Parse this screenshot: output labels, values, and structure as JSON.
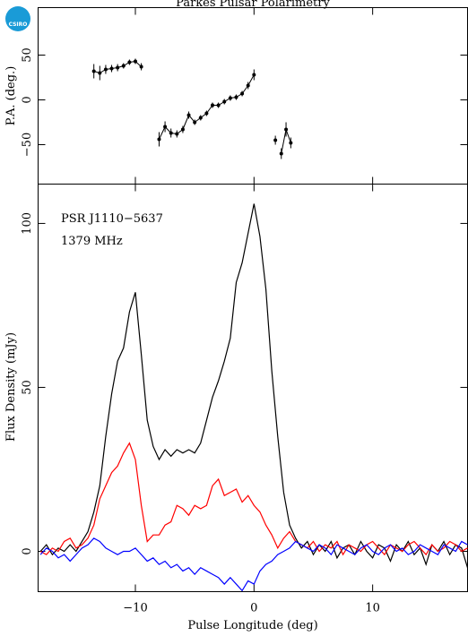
{
  "logo": "CSIRO",
  "chart_data": [
    {
      "type": "errorbar",
      "title": "Parkes Pulsar Polarimetry",
      "ylabel": "P.A. (deg.)",
      "x": [
        -13.5,
        -13,
        -12.5,
        -12,
        -11.5,
        -11,
        -10.5,
        -10,
        -9.5,
        -9,
        -8,
        -7.5,
        -7,
        -6.5,
        -6,
        -5.5,
        -5,
        -4.5,
        -4,
        -3.5,
        -3,
        -2.5,
        -2,
        -1.5,
        -1,
        -0.5,
        0,
        1,
        1.8,
        2,
        2.3,
        2.7,
        3.1
      ],
      "values": [
        32,
        30,
        34,
        35,
        36,
        38,
        42,
        43,
        37,
        null,
        -44,
        -30,
        -37,
        -38,
        -33,
        -17,
        -25,
        -20,
        -15,
        -6,
        -6,
        -2,
        2,
        3,
        7,
        16,
        28,
        null,
        -45,
        null,
        -60,
        -33,
        -48
      ],
      "errors": [
        8,
        8,
        5,
        4,
        4,
        3,
        3,
        3,
        4,
        null,
        8,
        6,
        5,
        4,
        4,
        4,
        3,
        3,
        3,
        3,
        3,
        3,
        3,
        3,
        3,
        4,
        6,
        null,
        5,
        null,
        6,
        8,
        6
      ],
      "color": "#000000",
      "xlim": [
        -18.2,
        18
      ],
      "xticks": [
        -10,
        0,
        10
      ],
      "ylim": [
        -94,
        103
      ],
      "yticks": [
        {
          "value": -50,
          "label": "−50"
        },
        0,
        50
      ]
    },
    {
      "type": "line",
      "xlabel": "Pulse Longitude (deg)",
      "ylabel": "Flux Density (mJy)",
      "annotations": [
        "PSR J1110−5637",
        "1379 MHz"
      ],
      "x": [
        -18,
        -17.5,
        -17,
        -16.5,
        -16,
        -15.5,
        -15,
        -14.5,
        -14,
        -13.5,
        -13,
        -12.5,
        -12,
        -11.5,
        -11,
        -10.5,
        -10,
        -9.5,
        -9,
        -8.5,
        -8,
        -7.5,
        -7,
        -6.5,
        -6,
        -5.5,
        -5,
        -4.5,
        -4,
        -3.5,
        -3,
        -2.5,
        -2,
        -1.5,
        -1,
        -0.5,
        0,
        0.5,
        1,
        1.5,
        2,
        2.5,
        3,
        3.5,
        4,
        4.5,
        5,
        5.5,
        6,
        6.5,
        7,
        7.5,
        8,
        8.5,
        9,
        9.5,
        10,
        10.5,
        11,
        11.5,
        12,
        12.5,
        13,
        13.5,
        14,
        14.5,
        15,
        15.5,
        16,
        16.5,
        17,
        17.5,
        18
      ],
      "series": [
        {
          "color": "#000000",
          "values": [
            0,
            2,
            -1,
            1,
            0,
            2,
            0,
            3,
            6,
            12,
            20,
            35,
            48,
            58,
            62,
            73,
            79,
            60,
            40,
            32,
            28,
            31,
            29,
            31,
            30,
            31,
            30,
            33,
            40,
            47,
            52,
            58,
            65,
            82,
            88,
            97,
            106,
            96,
            80,
            55,
            35,
            18,
            8,
            4,
            1,
            3,
            -1,
            2,
            0,
            3,
            -2,
            1,
            2,
            -1,
            3,
            0,
            -2,
            2,
            1,
            -3,
            2,
            0,
            3,
            -1,
            1,
            -4,
            2,
            0,
            3,
            -1,
            2,
            1,
            -5
          ]
        },
        {
          "color": "#ff0000",
          "values": [
            0,
            -1,
            1,
            0,
            3,
            4,
            1,
            2,
            4,
            8,
            16,
            20,
            24,
            26,
            30,
            33,
            28,
            14,
            3,
            5,
            5,
            8,
            9,
            14,
            13,
            11,
            14,
            13,
            14,
            20,
            22,
            17,
            18,
            19,
            15,
            17,
            14,
            12,
            8,
            5,
            1,
            4,
            6,
            3,
            2,
            1,
            3,
            0,
            2,
            1,
            3,
            -1,
            2,
            1,
            0,
            2,
            3,
            1,
            -1,
            2,
            1,
            0,
            2,
            3,
            1,
            -1,
            2,
            0,
            1,
            3,
            2,
            0,
            1
          ]
        },
        {
          "color": "#0000ff",
          "values": [
            -1,
            1,
            0,
            -2,
            -1,
            -3,
            -1,
            1,
            2,
            4,
            3,
            1,
            0,
            -1,
            0,
            0,
            1,
            -1,
            -3,
            -2,
            -4,
            -3,
            -5,
            -4,
            -6,
            -5,
            -7,
            -5,
            -6,
            -7,
            -8,
            -10,
            -8,
            -10,
            -12,
            -9,
            -10,
            -6,
            -4,
            -3,
            -1,
            0,
            1,
            3,
            2,
            1,
            0,
            2,
            1,
            -1,
            2,
            1,
            0,
            -1,
            1,
            2,
            0,
            -1,
            1,
            2,
            0,
            1,
            -1,
            0,
            2,
            1,
            0,
            -1,
            2,
            1,
            0,
            3,
            2
          ]
        }
      ],
      "xlim": [
        -18.2,
        18
      ],
      "xticks": [
        {
          "value": -10,
          "label": "−10"
        },
        0,
        10
      ],
      "ylim": [
        -12.3,
        112
      ],
      "yticks": [
        0,
        50,
        100
      ]
    }
  ]
}
